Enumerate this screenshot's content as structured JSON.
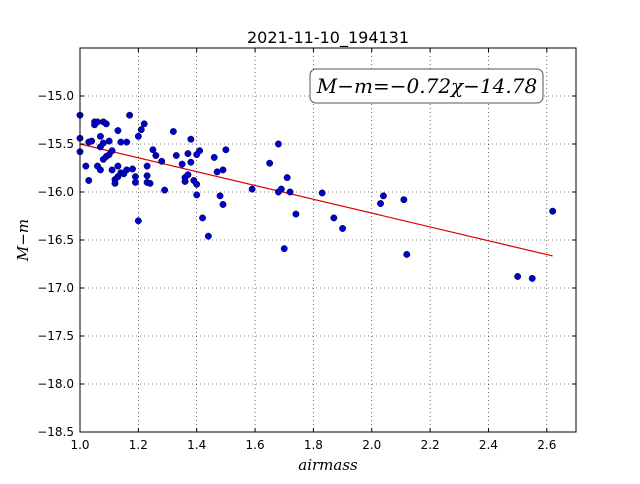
{
  "chart_data": {
    "type": "scatter",
    "title": "2021-11-10_194131",
    "xlabel": "airmass",
    "ylabel": "M−m",
    "xlim": [
      1.0,
      2.7
    ],
    "ylim": [
      -18.5,
      -14.5
    ],
    "xticks": [
      1.0,
      1.2,
      1.4,
      1.6,
      1.8,
      2.0,
      2.2,
      2.4,
      2.6
    ],
    "xtick_labels": [
      "1.0",
      "1.2",
      "1.4",
      "1.6",
      "1.8",
      "2.0",
      "2.2",
      "2.4",
      "2.6"
    ],
    "yticks": [
      -15.0,
      -15.5,
      -16.0,
      -16.5,
      -17.0,
      -17.5,
      -18.0,
      -18.5
    ],
    "ytick_labels": [
      "−15.0",
      "−15.5",
      "−16.0",
      "−16.5",
      "−17.0",
      "−17.5",
      "−18.0",
      "−18.5"
    ],
    "grid": true,
    "point_color": "#0000cc",
    "line_color": "#dd0000",
    "annotation": {
      "text": "M−m=−0.72χ−14.78",
      "position": "top-right"
    },
    "fit": {
      "slope": -0.72,
      "intercept": -14.78,
      "x_range": [
        1.0,
        2.62
      ]
    },
    "series": [
      {
        "points": [
          [
            1.0,
            -15.2
          ],
          [
            1.0,
            -15.44
          ],
          [
            1.0,
            -15.58
          ],
          [
            1.02,
            -15.73
          ],
          [
            1.03,
            -15.88
          ],
          [
            1.03,
            -15.48
          ],
          [
            1.04,
            -15.47
          ],
          [
            1.05,
            -15.3
          ],
          [
            1.05,
            -15.27
          ],
          [
            1.06,
            -15.27
          ],
          [
            1.06,
            -15.73
          ],
          [
            1.07,
            -15.77
          ],
          [
            1.07,
            -15.53
          ],
          [
            1.07,
            -15.42
          ],
          [
            1.08,
            -15.27
          ],
          [
            1.08,
            -15.49
          ],
          [
            1.08,
            -15.66
          ],
          [
            1.09,
            -15.29
          ],
          [
            1.09,
            -15.63
          ],
          [
            1.1,
            -15.47
          ],
          [
            1.1,
            -15.61
          ],
          [
            1.11,
            -15.57
          ],
          [
            1.11,
            -15.77
          ],
          [
            1.12,
            -15.87
          ],
          [
            1.12,
            -15.91
          ],
          [
            1.13,
            -15.36
          ],
          [
            1.13,
            -15.73
          ],
          [
            1.13,
            -15.84
          ],
          [
            1.14,
            -15.48
          ],
          [
            1.14,
            -15.8
          ],
          [
            1.15,
            -15.81
          ],
          [
            1.16,
            -15.48
          ],
          [
            1.16,
            -15.77
          ],
          [
            1.17,
            -15.2
          ],
          [
            1.18,
            -15.76
          ],
          [
            1.19,
            -15.84
          ],
          [
            1.19,
            -15.9
          ],
          [
            1.2,
            -15.42
          ],
          [
            1.2,
            -16.3
          ],
          [
            1.21,
            -15.35
          ],
          [
            1.22,
            -15.29
          ],
          [
            1.23,
            -15.73
          ],
          [
            1.23,
            -15.83
          ],
          [
            1.23,
            -15.9
          ],
          [
            1.24,
            -15.91
          ],
          [
            1.25,
            -15.56
          ],
          [
            1.26,
            -15.62
          ],
          [
            1.28,
            -15.68
          ],
          [
            1.29,
            -15.98
          ],
          [
            1.32,
            -15.37
          ],
          [
            1.33,
            -15.62
          ],
          [
            1.35,
            -15.71
          ],
          [
            1.36,
            -15.85
          ],
          [
            1.36,
            -15.89
          ],
          [
            1.37,
            -15.82
          ],
          [
            1.37,
            -15.6
          ],
          [
            1.38,
            -15.45
          ],
          [
            1.38,
            -15.69
          ],
          [
            1.39,
            -15.88
          ],
          [
            1.4,
            -15.92
          ],
          [
            1.4,
            -15.61
          ],
          [
            1.4,
            -16.03
          ],
          [
            1.41,
            -15.57
          ],
          [
            1.42,
            -16.27
          ],
          [
            1.44,
            -16.46
          ],
          [
            1.46,
            -15.64
          ],
          [
            1.47,
            -15.79
          ],
          [
            1.48,
            -16.04
          ],
          [
            1.49,
            -15.77
          ],
          [
            1.49,
            -16.13
          ],
          [
            1.5,
            -15.56
          ],
          [
            1.59,
            -15.97
          ],
          [
            1.65,
            -15.7
          ],
          [
            1.68,
            -16.0
          ],
          [
            1.68,
            -15.5
          ],
          [
            1.69,
            -15.97
          ],
          [
            1.7,
            -16.59
          ],
          [
            1.71,
            -15.85
          ],
          [
            1.72,
            -16.0
          ],
          [
            1.74,
            -16.23
          ],
          [
            1.83,
            -16.01
          ],
          [
            1.87,
            -16.27
          ],
          [
            1.9,
            -16.38
          ],
          [
            2.03,
            -16.12
          ],
          [
            2.04,
            -16.04
          ],
          [
            2.11,
            -16.08
          ],
          [
            2.12,
            -16.65
          ],
          [
            2.5,
            -16.88
          ],
          [
            2.55,
            -16.9
          ],
          [
            2.62,
            -16.2
          ]
        ]
      }
    ]
  }
}
